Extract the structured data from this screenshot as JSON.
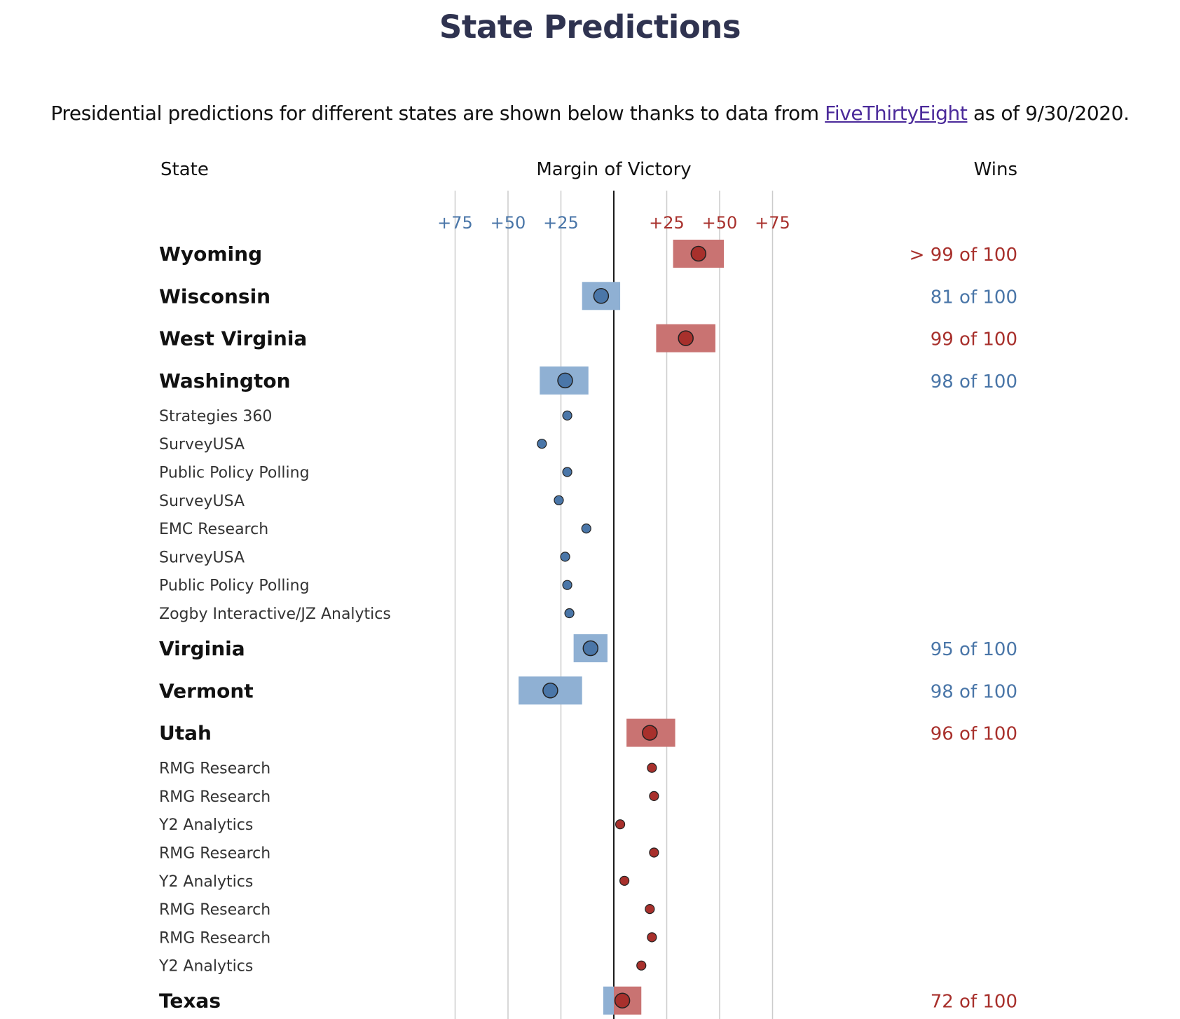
{
  "title": "State Predictions",
  "intro": {
    "before": "Presidential predictions for different states are shown below thanks to data from ",
    "link_text": "FiveThirtyEight",
    "after": " as of 9/30/2020."
  },
  "headers": {
    "state": "State",
    "margin": "Margin of Victory",
    "wins": "Wins"
  },
  "colors": {
    "dem": "#4a76a8",
    "dem_band": "#8fb0d3",
    "rep": "#a8302c",
    "rep_band": "#c97372",
    "dem_text": "#4a76a8",
    "rep_text": "#a8302c",
    "grid": "#cccccc",
    "axis": "#000000"
  },
  "chart_data": {
    "type": "scatter",
    "xlabel": "Margin of Victory",
    "x_ticks": [
      {
        "value": -75,
        "label": "+75",
        "party": "dem"
      },
      {
        "value": -50,
        "label": "+50",
        "party": "dem"
      },
      {
        "value": -25,
        "label": "+25",
        "party": "dem"
      },
      {
        "value": 25,
        "label": "+25",
        "party": "rep"
      },
      {
        "value": 50,
        "label": "+50",
        "party": "rep"
      },
      {
        "value": 75,
        "label": "+75",
        "party": "rep"
      }
    ],
    "xlim": [
      -90,
      90
    ],
    "rows": [
      {
        "kind": "state",
        "name": "Wyoming",
        "margin": 40,
        "low": 28,
        "high": 52,
        "wins": "> 99 of 100",
        "party": "rep"
      },
      {
        "kind": "state",
        "name": "Wisconsin",
        "margin": -6,
        "low": -15,
        "high": 3,
        "wins": "81 of 100",
        "party": "dem"
      },
      {
        "kind": "state",
        "name": "West Virginia",
        "margin": 34,
        "low": 20,
        "high": 48,
        "wins": "99 of 100",
        "party": "rep"
      },
      {
        "kind": "state",
        "name": "Washington",
        "margin": -23,
        "low": -35,
        "high": -12,
        "wins": "98 of 100",
        "party": "dem"
      },
      {
        "kind": "poll",
        "name": "Strategies 360",
        "margin": -22,
        "party": "dem"
      },
      {
        "kind": "poll",
        "name": "SurveyUSA",
        "margin": -34,
        "party": "dem"
      },
      {
        "kind": "poll",
        "name": "Public Policy Polling",
        "margin": -22,
        "party": "dem"
      },
      {
        "kind": "poll",
        "name": "SurveyUSA",
        "margin": -26,
        "party": "dem"
      },
      {
        "kind": "poll",
        "name": "EMC Research",
        "margin": -13,
        "party": "dem"
      },
      {
        "kind": "poll",
        "name": "SurveyUSA",
        "margin": -23,
        "party": "dem"
      },
      {
        "kind": "poll",
        "name": "Public Policy Polling",
        "margin": -22,
        "party": "dem"
      },
      {
        "kind": "poll",
        "name": "Zogby Interactive/JZ Analytics",
        "margin": -21,
        "party": "dem"
      },
      {
        "kind": "state",
        "name": "Virginia",
        "margin": -11,
        "low": -19,
        "high": -3,
        "wins": "95 of 100",
        "party": "dem"
      },
      {
        "kind": "state",
        "name": "Vermont",
        "margin": -30,
        "low": -45,
        "high": -15,
        "wins": "98 of 100",
        "party": "dem"
      },
      {
        "kind": "state",
        "name": "Utah",
        "margin": 17,
        "low": 6,
        "high": 29,
        "wins": "96 of 100",
        "party": "rep"
      },
      {
        "kind": "poll",
        "name": "RMG Research",
        "margin": 18,
        "party": "rep"
      },
      {
        "kind": "poll",
        "name": "RMG Research",
        "margin": 19,
        "party": "rep"
      },
      {
        "kind": "poll",
        "name": "Y2 Analytics",
        "margin": 3,
        "party": "rep"
      },
      {
        "kind": "poll",
        "name": "RMG Research",
        "margin": 19,
        "party": "rep"
      },
      {
        "kind": "poll",
        "name": "Y2 Analytics",
        "margin": 5,
        "party": "rep"
      },
      {
        "kind": "poll",
        "name": "RMG Research",
        "margin": 17,
        "party": "rep"
      },
      {
        "kind": "poll",
        "name": "RMG Research",
        "margin": 18,
        "party": "rep"
      },
      {
        "kind": "poll",
        "name": "Y2 Analytics",
        "margin": 13,
        "party": "rep"
      },
      {
        "kind": "state",
        "name": "Texas",
        "margin": 4,
        "low": -5,
        "high": 13,
        "wins": "72 of 100",
        "party": "rep",
        "split_at": 0
      }
    ]
  }
}
